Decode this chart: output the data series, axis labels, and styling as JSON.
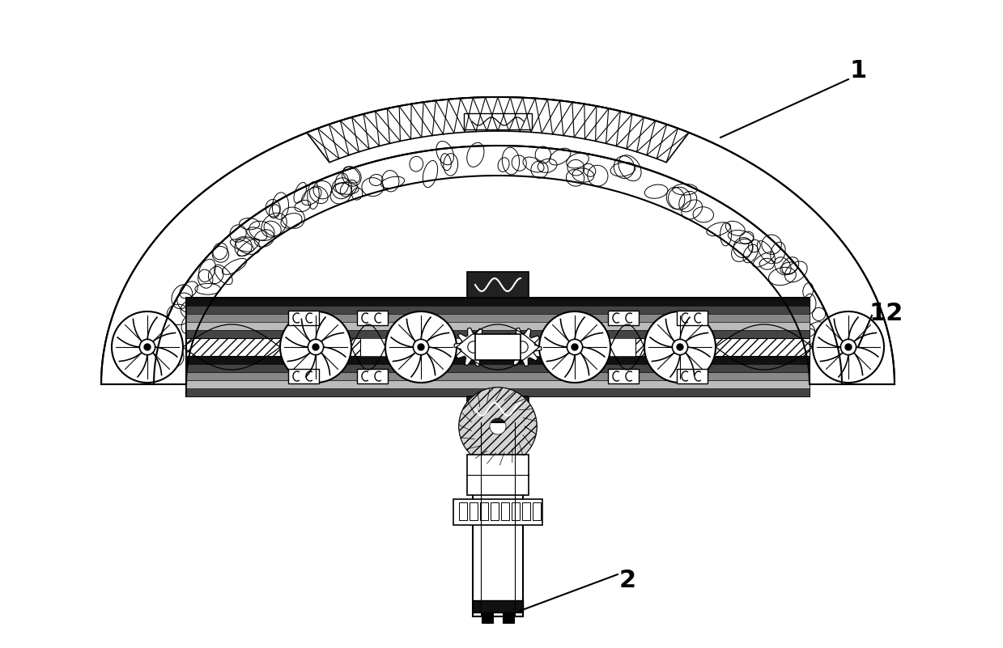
{
  "background_color": "#ffffff",
  "line_color": "#000000",
  "label_1": "1",
  "label_2": "2",
  "label_12": "12",
  "fig_width": 12.39,
  "fig_height": 8.01,
  "fig_dpi": 100
}
